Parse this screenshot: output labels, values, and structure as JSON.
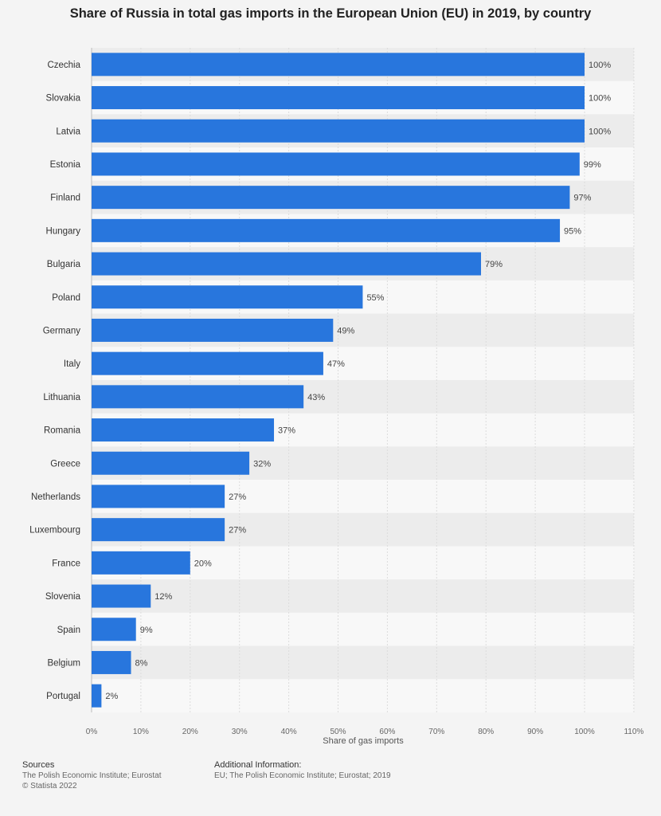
{
  "chart_data": {
    "type": "bar",
    "orientation": "horizontal",
    "title": "Share of Russia in total gas imports in the European Union (EU) in 2019, by country",
    "xlabel": "Share of gas imports",
    "categories": [
      "Czechia",
      "Slovakia",
      "Latvia",
      "Estonia",
      "Finland",
      "Hungary",
      "Bulgaria",
      "Poland",
      "Germany",
      "Italy",
      "Lithuania",
      "Romania",
      "Greece",
      "Netherlands",
      "Luxembourg",
      "France",
      "Slovenia",
      "Spain",
      "Belgium",
      "Portugal"
    ],
    "values": [
      100,
      100,
      100,
      99,
      97,
      95,
      79,
      55,
      49,
      47,
      43,
      37,
      32,
      27,
      27,
      20,
      12,
      9,
      8,
      2
    ],
    "value_labels": [
      "100%",
      "100%",
      "100%",
      "99%",
      "97%",
      "95%",
      "79%",
      "55%",
      "49%",
      "47%",
      "43%",
      "37%",
      "32%",
      "27%",
      "27%",
      "20%",
      "12%",
      "9%",
      "8%",
      "2%"
    ],
    "xlim": [
      0,
      110
    ],
    "xticks": [
      0,
      10,
      20,
      30,
      40,
      50,
      60,
      70,
      80,
      90,
      100,
      110
    ],
    "xtick_labels": [
      "0%",
      "10%",
      "20%",
      "30%",
      "40%",
      "50%",
      "60%",
      "70%",
      "80%",
      "90%",
      "100%",
      "110%"
    ],
    "grid": true,
    "bar_color": "#2876dd"
  },
  "footer": {
    "sources_heading": "Sources",
    "sources_text": "The Polish Economic Institute; Eurostat",
    "copyright": "© Statista 2022",
    "additional_heading": "Additional Information:",
    "additional_text": "EU; The Polish Economic Institute; Eurostat; 2019"
  }
}
